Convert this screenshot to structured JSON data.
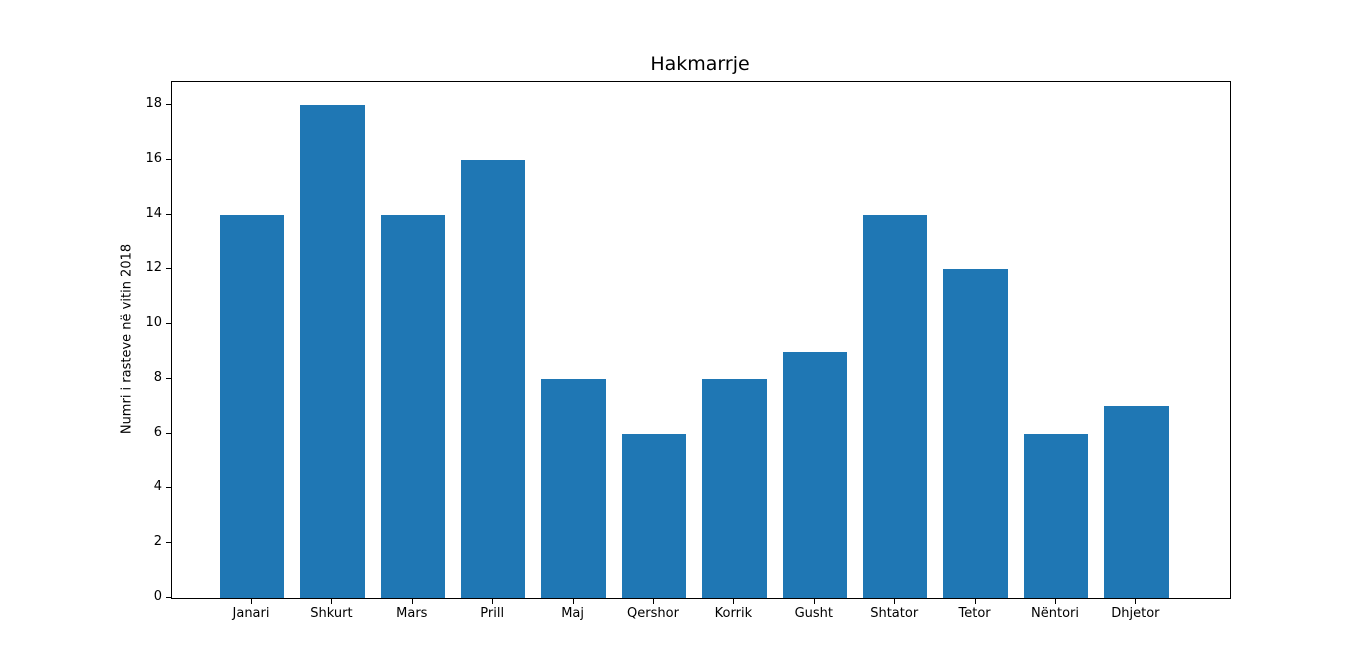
{
  "figure": {
    "background": "#ffffff"
  },
  "chart_data": {
    "type": "bar",
    "title": "Hakmarrje",
    "xlabel": "",
    "ylabel": "Numri i rasteve në vitin 2018",
    "categories": [
      "Janari",
      "Shkurt",
      "Mars",
      "Prill",
      "Maj",
      "Qershor",
      "Korrik",
      "Gusht",
      "Shtator",
      "Tetor",
      "Nëntori",
      "Dhjetor"
    ],
    "values": [
      14,
      18,
      14,
      16,
      8,
      6,
      8,
      9,
      14,
      12,
      6,
      7
    ],
    "yticks": [
      0,
      2,
      4,
      6,
      8,
      10,
      12,
      14,
      16,
      18
    ],
    "ylim": [
      0,
      18.8
    ],
    "bar_color": "#1f77b4",
    "axis_color": "#000000",
    "grid": false,
    "legend": "none"
  }
}
